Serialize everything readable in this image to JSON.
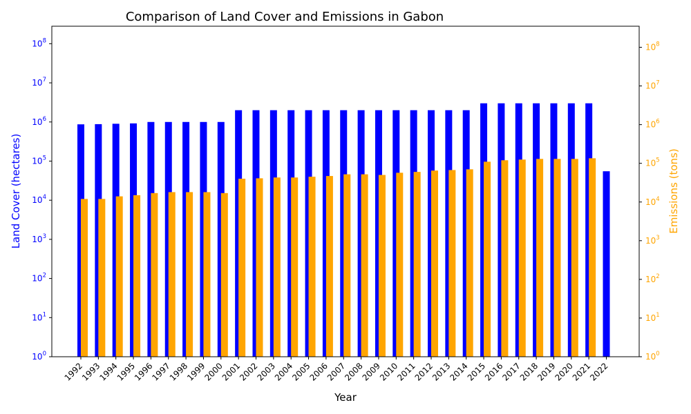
{
  "chart_data": {
    "type": "bar",
    "title": "Comparison of Land Cover and Emissions in Gabon",
    "xlabel": "Year",
    "ylabel_left": "Land Cover (hectares)",
    "ylabel_right": "Emissions (tons)",
    "yscale": "log",
    "ylim_left": [
      1,
      280000000
    ],
    "ylim_right": [
      1,
      350000000
    ],
    "grid": false,
    "categories": [
      "1992",
      "1993",
      "1994",
      "1995",
      "1996",
      "1997",
      "1998",
      "1999",
      "2000",
      "2001",
      "2002",
      "2003",
      "2004",
      "2005",
      "2006",
      "2007",
      "2008",
      "2009",
      "2010",
      "2011",
      "2012",
      "2013",
      "2014",
      "2015",
      "2016",
      "2017",
      "2018",
      "2019",
      "2020",
      "2021",
      "2022"
    ],
    "series": [
      {
        "name": "Land Cover (hectares)",
        "color": "#0000ff",
        "axis": "left",
        "values": [
          870000,
          880000,
          900000,
          920000,
          1000000,
          1000000,
          1000000,
          1000000,
          1000000,
          2000000,
          2000000,
          2000000,
          2000000,
          2000000,
          2000000,
          2000000,
          2000000,
          2000000,
          2000000,
          2000000,
          2000000,
          2000000,
          2000000,
          3000000,
          3000000,
          3000000,
          3000000,
          3000000,
          3000000,
          3000000,
          55000
        ]
      },
      {
        "name": "Emissions (tons)",
        "color": "#ffa500",
        "axis": "right",
        "values": [
          12000,
          12000,
          14000,
          15000,
          17000,
          18000,
          18000,
          18000,
          17000,
          40000,
          41000,
          43000,
          43000,
          45000,
          47000,
          52000,
          52000,
          50000,
          57000,
          60000,
          65000,
          67000,
          70000,
          110000,
          120000,
          125000,
          130000,
          130000,
          130000,
          135000,
          null
        ]
      }
    ],
    "left_ticks": [
      {
        "base": "10",
        "exp": "0"
      },
      {
        "base": "10",
        "exp": "1"
      },
      {
        "base": "10",
        "exp": "2"
      },
      {
        "base": "10",
        "exp": "3"
      },
      {
        "base": "10",
        "exp": "4"
      },
      {
        "base": "10",
        "exp": "5"
      },
      {
        "base": "10",
        "exp": "6"
      },
      {
        "base": "10",
        "exp": "7"
      },
      {
        "base": "10",
        "exp": "8"
      }
    ],
    "right_ticks": [
      {
        "base": "10",
        "exp": "0"
      },
      {
        "base": "10",
        "exp": "1"
      },
      {
        "base": "10",
        "exp": "2"
      },
      {
        "base": "10",
        "exp": "3"
      },
      {
        "base": "10",
        "exp": "4"
      },
      {
        "base": "10",
        "exp": "5"
      },
      {
        "base": "10",
        "exp": "6"
      },
      {
        "base": "10",
        "exp": "7"
      },
      {
        "base": "10",
        "exp": "8"
      }
    ],
    "colors": {
      "left_axis": "#0000ff",
      "right_axis": "#ffa500",
      "spine": "#000000"
    }
  }
}
